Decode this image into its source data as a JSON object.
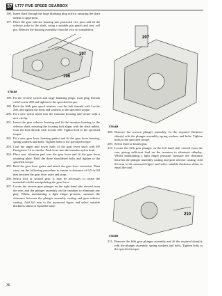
{
  "header": {
    "section": "37",
    "title": "LT77 FIVE SPEED GEARBOX"
  },
  "left": {
    "top_steps": [
      {
        "number": "196.",
        "text": "Insert shaft through the large blanking plug orifice, ensuring the shaft indent is uppermost."
      },
      {
        "number": "197.",
        "text": "Place the gear selector housing into protected vice jaws and fit the selector yoke to the shaft, using a suitable pin punch and new roll pin. Remove the housing assembly from the vice on completion."
      }
    ],
    "figure": {
      "callouts": [
        "197",
        "196"
      ],
      "code": "ST643M"
    },
    "steps": [
      {
        "number": "198.",
        "text": "Fit the reverse switch and large blanking plugs. Coat plug threads with Loctite 290 and tighten to the specified torque."
      },
      {
        "number": "199.",
        "text": "Refit the fifth gear spool retainer, coat the bolt threads with Loctite 290, and tighten the bolts and washers to the specified torque."
      },
      {
        "number": "200.",
        "text": "Fit a new nylon insert into the trunnion housing and secure with a new circlip."
      },
      {
        "number": "201.",
        "text": "Invert the gear selector housing and fit the trunnion housing to the selector shaft, ensuring the locating bolt aligns with the shaft indent. Coat the bolt threads with Loctite 290. Tighten bolt to the specified torque."
      },
      {
        "number": "202.",
        "text": "Fit a new gear lever housing gasket and fit the gear lever housing, spring washers and bolts. Tighten bolts to the specified torque."
      },
      {
        "number": "203.",
        "text": "Coat the upper and lower balls of the gear lever shaft with EP Energrease L2 or similar. Push lever into the trunnion nylon bush."
      },
      {
        "number": "204.",
        "text": "Place new vibration pad over the gear lever and fit the gear lever retaining plate. Refit the three shouldered bolts and tighten to the specified torque."
      },
      {
        "number": "205.",
        "text": "Refit the gear lever gaiter and attach the gear lever extension. Then carry out the following procedure to ensure a clearance of 0,5 to 0,9 mm between the gear lever yoke and stops."
      },
      {
        "number": "206.",
        "text": "Select first or second gear. It may be necessary to rotate the mainshaft whilst manipulating the gear lever."
      },
      {
        "number": "207.",
        "text": "Locate the reverse gear plunger on the right hand side viewed from the rear, and the plunger assembly on the trunnion to eliminate any play. Whilst maintaining a light finger pressure, measure the clearance between the plunger assembly casting and gear selector casting. Add 0,6 mm to the measured figure and select suitable thickness shims to equal the total."
      }
    ]
  },
  "right": {
    "figure_top": {
      "callouts": [
        "207"
      ],
      "code": "ST644M"
    },
    "steps": [
      {
        "number": "208.",
        "text": "Remove the reverse plunger assembly, fit the required thickness shim(s) refit the plunger assembly, spring washers and bolts. Tighten bolts to the specified torque."
      },
      {
        "number": "209.",
        "text": "Select third or fourth gear."
      },
      {
        "number": "210.",
        "text": "Locate the fifth gear plunger on the left hand side viewed from the rear, giving sufficient load on the trunnion to eliminate sideplay. Whilst maintaining a light finger pressure, measure the clearance between the plunger assembly casting and gear selector casting. Add 0,6 mm to the measured figure and select suitable thickness shims to equal the total."
      }
    ],
    "figure_bottom": {
      "callouts": [
        "210"
      ],
      "code": "ST645M"
    },
    "bottom_steps": [
      {
        "number": "211.",
        "text": "Remove the fifth gear plunger assembly and fit the required shim(s), refit the plunger assembly, spring washers and bolts. Tighten bolts to the specified torque."
      }
    ]
  },
  "footer": {
    "page": "36"
  }
}
